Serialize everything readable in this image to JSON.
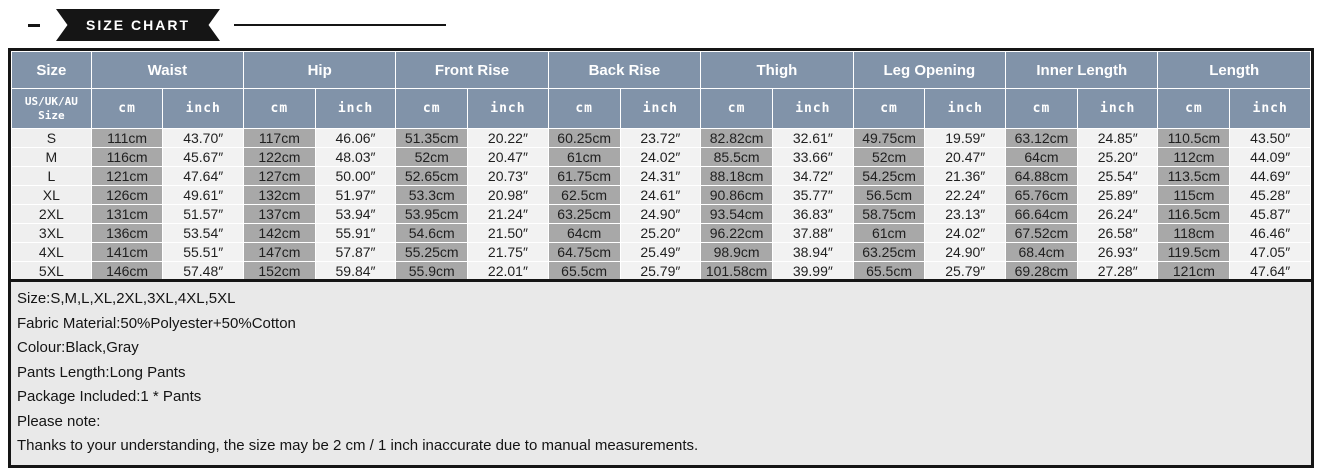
{
  "banner": {
    "title": "SIZE CHART"
  },
  "colors": {
    "header_bg": "#8193a9",
    "cm_cell_bg": "#a8a8a8",
    "inch_cell_bg": "#f2f2f2",
    "size_cell_bg": "#efefef",
    "notes_bg": "#e9e9e9",
    "frame": "#151515",
    "grid": "#ffffff",
    "header_text": "#ffffff",
    "cell_text": "#1f1f1f"
  },
  "table": {
    "size_header": "Size",
    "size_subheader": "US/UK/AU\nSize",
    "unit_cm": "cm",
    "unit_inch": "inch",
    "groups": [
      "Waist",
      "Hip",
      "Front Rise",
      "Back Rise",
      "Thigh",
      "Leg Opening",
      "Inner Length",
      "Length"
    ],
    "rows": [
      {
        "size": "S",
        "cells": [
          [
            "111cm",
            "43.70″"
          ],
          [
            "117cm",
            "46.06″"
          ],
          [
            "51.35cm",
            "20.22″"
          ],
          [
            "60.25cm",
            "23.72″"
          ],
          [
            "82.82cm",
            "32.61″"
          ],
          [
            "49.75cm",
            "19.59″"
          ],
          [
            "63.12cm",
            "24.85″"
          ],
          [
            "110.5cm",
            "43.50″"
          ]
        ]
      },
      {
        "size": "M",
        "cells": [
          [
            "116cm",
            "45.67″"
          ],
          [
            "122cm",
            "48.03″"
          ],
          [
            "52cm",
            "20.47″"
          ],
          [
            "61cm",
            "24.02″"
          ],
          [
            "85.5cm",
            "33.66″"
          ],
          [
            "52cm",
            "20.47″"
          ],
          [
            "64cm",
            "25.20″"
          ],
          [
            "112cm",
            "44.09″"
          ]
        ]
      },
      {
        "size": "L",
        "cells": [
          [
            "121cm",
            "47.64″"
          ],
          [
            "127cm",
            "50.00″"
          ],
          [
            "52.65cm",
            "20.73″"
          ],
          [
            "61.75cm",
            "24.31″"
          ],
          [
            "88.18cm",
            "34.72″"
          ],
          [
            "54.25cm",
            "21.36″"
          ],
          [
            "64.88cm",
            "25.54″"
          ],
          [
            "113.5cm",
            "44.69″"
          ]
        ]
      },
      {
        "size": "XL",
        "cells": [
          [
            "126cm",
            "49.61″"
          ],
          [
            "132cm",
            "51.97″"
          ],
          [
            "53.3cm",
            "20.98″"
          ],
          [
            "62.5cm",
            "24.61″"
          ],
          [
            "90.86cm",
            "35.77″"
          ],
          [
            "56.5cm",
            "22.24″"
          ],
          [
            "65.76cm",
            "25.89″"
          ],
          [
            "115cm",
            "45.28″"
          ]
        ]
      },
      {
        "size": "2XL",
        "cells": [
          [
            "131cm",
            "51.57″"
          ],
          [
            "137cm",
            "53.94″"
          ],
          [
            "53.95cm",
            "21.24″"
          ],
          [
            "63.25cm",
            "24.90″"
          ],
          [
            "93.54cm",
            "36.83″"
          ],
          [
            "58.75cm",
            "23.13″"
          ],
          [
            "66.64cm",
            "26.24″"
          ],
          [
            "116.5cm",
            "45.87″"
          ]
        ]
      },
      {
        "size": "3XL",
        "cells": [
          [
            "136cm",
            "53.54″"
          ],
          [
            "142cm",
            "55.91″"
          ],
          [
            "54.6cm",
            "21.50″"
          ],
          [
            "64cm",
            "25.20″"
          ],
          [
            "96.22cm",
            "37.88″"
          ],
          [
            "61cm",
            "24.02″"
          ],
          [
            "67.52cm",
            "26.58″"
          ],
          [
            "118cm",
            "46.46″"
          ]
        ]
      },
      {
        "size": "4XL",
        "cells": [
          [
            "141cm",
            "55.51″"
          ],
          [
            "147cm",
            "57.87″"
          ],
          [
            "55.25cm",
            "21.75″"
          ],
          [
            "64.75cm",
            "25.49″"
          ],
          [
            "98.9cm",
            "38.94″"
          ],
          [
            "63.25cm",
            "24.90″"
          ],
          [
            "68.4cm",
            "26.93″"
          ],
          [
            "119.5cm",
            "47.05″"
          ]
        ]
      },
      {
        "size": "5XL",
        "cells": [
          [
            "146cm",
            "57.48″"
          ],
          [
            "152cm",
            "59.84″"
          ],
          [
            "55.9cm",
            "22.01″"
          ],
          [
            "65.5cm",
            "25.79″"
          ],
          [
            "101.58cm",
            "39.99″"
          ],
          [
            "65.5cm",
            "25.79″"
          ],
          [
            "69.28cm",
            "27.28″"
          ],
          [
            "121cm",
            "47.64″"
          ]
        ]
      }
    ]
  },
  "notes": {
    "lines": [
      "Size:S,M,L,XL,2XL,3XL,4XL,5XL",
      "Fabric Material:50%Polyester+50%Cotton",
      "Colour:Black,Gray",
      "Pants Length:Long Pants",
      "Package Included:1 * Pants",
      "Please note:",
      "Thanks to your understanding, the size may be 2 cm / 1 inch inaccurate due to manual measurements."
    ]
  }
}
